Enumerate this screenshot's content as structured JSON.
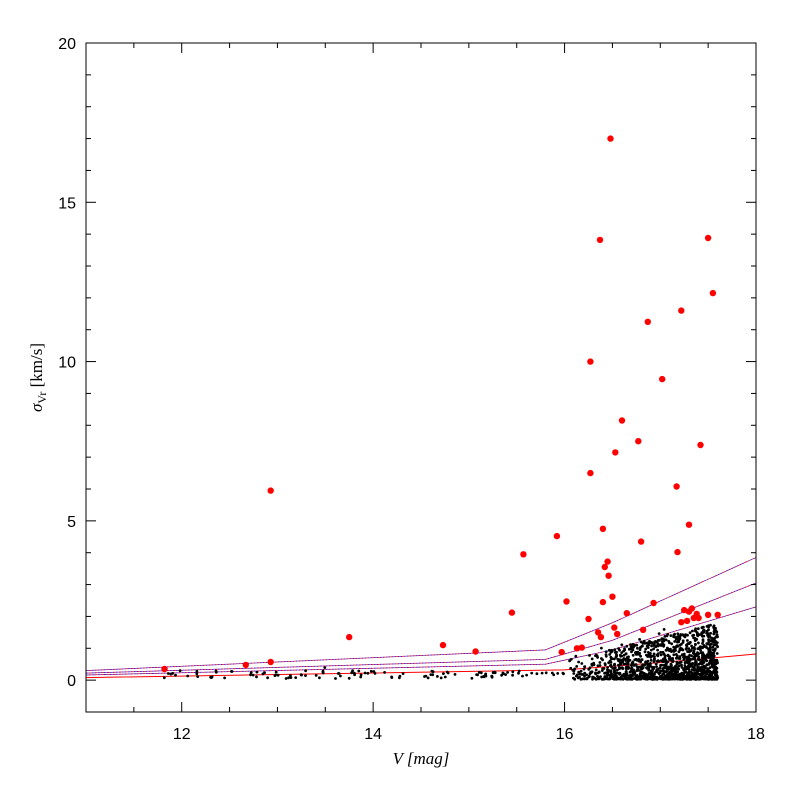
{
  "chart_data": {
    "type": "scatter",
    "title": "",
    "xlabel": "V [mag]",
    "ylabel_symbol": "σ",
    "ylabel_subscript": "Vr",
    "ylabel_unit": " [km/s]",
    "xlim": [
      11,
      18
    ],
    "ylim": [
      -1,
      20
    ],
    "xticks": [
      12,
      14,
      16,
      18
    ],
    "yticks": [
      0,
      5,
      10,
      15,
      20
    ],
    "grid": false,
    "colors": {
      "highlight": "#ff0000",
      "points": "#000000",
      "curve_solid": "#ff0000",
      "curve_dashed_red": "#ff0000",
      "curve_dashed_blue": "#0000ff"
    },
    "series": [
      {
        "style": "large-red-dots",
        "points": [
          [
            11.82,
            0.35
          ],
          [
            12.67,
            0.48
          ],
          [
            12.93,
            0.57
          ],
          [
            12.93,
            5.95
          ],
          [
            13.75,
            1.35
          ],
          [
            14.73,
            1.1
          ],
          [
            15.07,
            0.9
          ],
          [
            15.45,
            2.12
          ],
          [
            15.57,
            3.95
          ],
          [
            15.92,
            4.52
          ],
          [
            15.97,
            0.88
          ],
          [
            16.02,
            2.47
          ],
          [
            16.13,
            1.0
          ],
          [
            16.18,
            1.02
          ],
          [
            16.25,
            1.92
          ],
          [
            16.27,
            10.0
          ],
          [
            16.27,
            6.5
          ],
          [
            16.35,
            1.5
          ],
          [
            16.37,
            13.82
          ],
          [
            16.38,
            1.35
          ],
          [
            16.4,
            4.75
          ],
          [
            16.4,
            2.45
          ],
          [
            16.42,
            3.55
          ],
          [
            16.45,
            3.72
          ],
          [
            16.46,
            3.28
          ],
          [
            16.48,
            17.0
          ],
          [
            16.5,
            2.62
          ],
          [
            16.52,
            1.65
          ],
          [
            16.53,
            7.15
          ],
          [
            16.55,
            1.45
          ],
          [
            16.6,
            8.15
          ],
          [
            16.65,
            2.1
          ],
          [
            16.77,
            7.5
          ],
          [
            16.8,
            4.35
          ],
          [
            16.82,
            1.58
          ],
          [
            16.87,
            11.25
          ],
          [
            16.93,
            2.42
          ],
          [
            17.02,
            9.45
          ],
          [
            17.17,
            6.08
          ],
          [
            17.18,
            4.02
          ],
          [
            17.22,
            11.6
          ],
          [
            17.22,
            1.82
          ],
          [
            17.25,
            2.2
          ],
          [
            17.28,
            1.86
          ],
          [
            17.3,
            4.88
          ],
          [
            17.3,
            2.15
          ],
          [
            17.33,
            2.25
          ],
          [
            17.35,
            1.95
          ],
          [
            17.38,
            2.08
          ],
          [
            17.4,
            1.95
          ],
          [
            17.42,
            7.38
          ],
          [
            17.5,
            13.88
          ],
          [
            17.5,
            2.05
          ],
          [
            17.55,
            12.15
          ],
          [
            17.6,
            2.05
          ]
        ]
      },
      {
        "style": "small-black-dots",
        "distribution": "dense cloud of small black points for V between 11.8 and 17.6 with dispersion below 0.5 km/s at bright magnitudes, spreading up to about 1.8 km/s for V above 16"
      }
    ],
    "curves": [
      {
        "style": "solid",
        "color": "red",
        "points": [
          [
            11,
            0.08
          ],
          [
            16,
            0.32
          ],
          [
            17,
            0.55
          ],
          [
            18,
            0.82
          ]
        ]
      },
      {
        "style": "dashed",
        "color": "red",
        "points": [
          [
            11,
            0.16
          ],
          [
            15.8,
            0.5
          ],
          [
            16.5,
            0.95
          ],
          [
            18,
            2.3
          ]
        ]
      },
      {
        "style": "dashed",
        "color": "red",
        "points": [
          [
            11,
            0.22
          ],
          [
            15.8,
            0.65
          ],
          [
            16.5,
            1.25
          ],
          [
            18,
            3.05
          ]
        ]
      },
      {
        "style": "dashed",
        "color": "red",
        "points": [
          [
            11,
            0.3
          ],
          [
            15.8,
            0.95
          ],
          [
            16.5,
            1.8
          ],
          [
            18,
            3.85
          ]
        ]
      }
    ]
  }
}
